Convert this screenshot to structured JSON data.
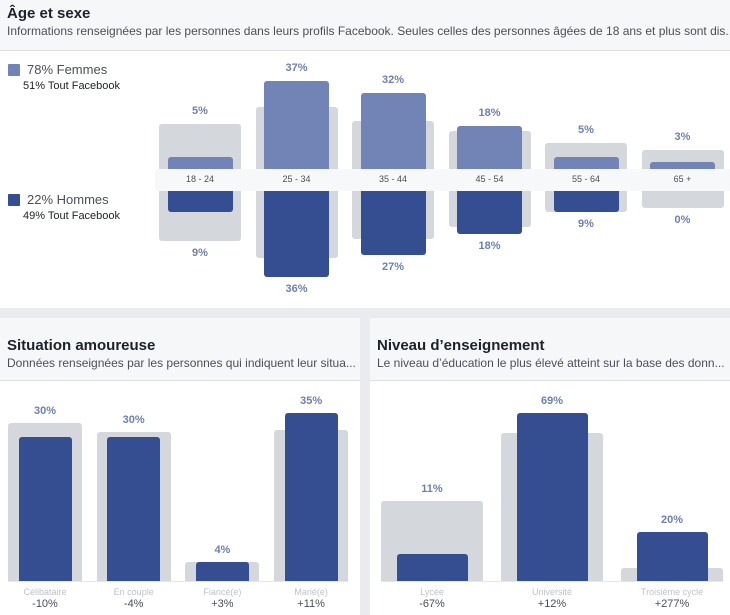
{
  "age_sex": {
    "title": "Âge et sexe",
    "subtitle": "Informations renseignées par les personnes dans leurs profils Facebook. Seules celles des personnes âgées de 18 ans et plus sont dis...",
    "legend": {
      "women": {
        "label": "78% Femmes",
        "baseline": "51% Tout Facebook",
        "color": "#7284b6"
      },
      "men": {
        "label": "22% Hommes",
        "baseline": "49% Tout Facebook",
        "color": "#354d91"
      }
    }
  },
  "relationship": {
    "title": "Situation amoureuse",
    "subtitle": "Données renseignées par les personnes qui indiquent leur situa..."
  },
  "education": {
    "title": "Niveau d’enseignement",
    "subtitle": "Le niveau d’éducation le plus élevé atteint sur la base des donn..."
  },
  "chart_data": [
    {
      "type": "bar",
      "title": "Âge et sexe",
      "categories": [
        "18 - 24",
        "25 - 34",
        "35 - 44",
        "45 - 54",
        "55 - 64",
        "65 +"
      ],
      "series": [
        {
          "name": "Femmes",
          "values": [
            5,
            37,
            32,
            18,
            5,
            3
          ],
          "labels": [
            "5%",
            "37%",
            "32%",
            "18%",
            "5%",
            "3%"
          ],
          "color": "#7284b6"
        },
        {
          "name": "Hommes",
          "values": [
            9,
            36,
            27,
            18,
            9,
            0
          ],
          "labels": [
            "9%",
            "36%",
            "27%",
            "18%",
            "9%",
            "0%"
          ],
          "color": "#354d91"
        },
        {
          "name": "Tout Facebook (Femmes)",
          "values": [
            19,
            26,
            20,
            16,
            11,
            8
          ],
          "color": "#d4d7dc"
        },
        {
          "name": "Tout Facebook (Hommes)",
          "values": [
            21,
            28,
            20,
            15,
            9,
            7
          ],
          "color": "#d4d7dc"
        }
      ],
      "ylabel": "%"
    },
    {
      "type": "bar",
      "title": "Situation amoureuse",
      "categories": [
        "Célibataire",
        "En couple",
        "Fiancé(e)",
        "Marié(e)"
      ],
      "values": [
        30,
        30,
        4,
        35
      ],
      "labels": [
        "30%",
        "30%",
        "4%",
        "35%"
      ],
      "deltas": [
        "-10%",
        "-4%",
        "+3%",
        "+11%"
      ],
      "baseline_values": [
        33,
        31,
        4,
        31.5
      ],
      "color": "#354d91"
    },
    {
      "type": "bar",
      "title": "Niveau d’enseignement",
      "categories": [
        "Lycée",
        "Université",
        "Troisième cycle"
      ],
      "values": [
        11,
        69,
        20
      ],
      "labels": [
        "11%",
        "69%",
        "20%"
      ],
      "deltas": [
        "-67%",
        "+12%",
        "+277%"
      ],
      "baseline_values": [
        33,
        61,
        5.3
      ],
      "color": "#354d91"
    }
  ]
}
